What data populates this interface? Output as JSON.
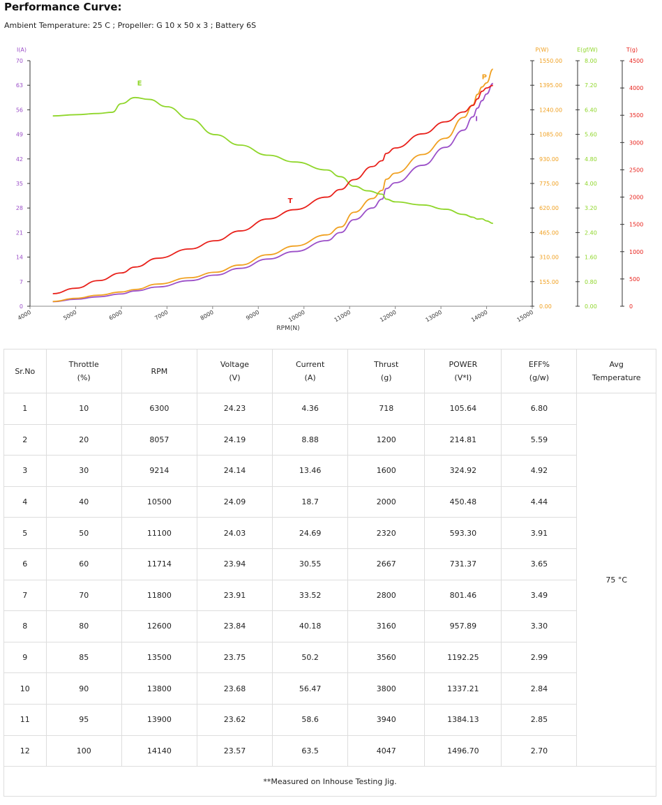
{
  "header": {
    "title": "Performance Curve:",
    "subtitle": "Ambient Temperature: 25 C ; Propeller: G 10 x 50 x 3 ; Battery 6S"
  },
  "chart_data": {
    "type": "line",
    "xlabel": "RPM(N)",
    "x_ticks": [
      "4000",
      "5000",
      "6000",
      "7000",
      "8000",
      "9000",
      "10000",
      "11000",
      "12000",
      "13000",
      "14000",
      "15000"
    ],
    "xlim": [
      4000,
      15000
    ],
    "colors": {
      "I": "#9b4fc8",
      "P": "#f0a020",
      "E": "#8fd62a",
      "T": "#e8201a"
    },
    "axes": [
      {
        "key": "I",
        "label": "I(A)",
        "ticks": [
          "70",
          "63",
          "56",
          "49",
          "42",
          "35",
          "28",
          "21",
          "14",
          "7",
          "0"
        ],
        "color": "#9b4fc8"
      },
      {
        "key": "P",
        "label": "P(W)",
        "ticks": [
          "1550.00",
          "1395.00",
          "1240.00",
          "1085.00",
          "930.00",
          "775.00",
          "620.00",
          "465.00",
          "310.00",
          "155.00",
          "0.00"
        ],
        "color": "#f0a020"
      },
      {
        "key": "E",
        "label": "E(gf/W)",
        "ticks": [
          "8.00",
          "7.20",
          "6.40",
          "5.60",
          "4.80",
          "4.00",
          "3.20",
          "2.40",
          "1.60",
          "0.80",
          "0.00"
        ],
        "color": "#8fd62a"
      },
      {
        "key": "T",
        "label": "T(g)",
        "ticks": [
          "4500",
          "4000",
          "3500",
          "3000",
          "2500",
          "2000",
          "1500",
          "1000",
          "500",
          "0"
        ],
        "color": "#e8201a"
      }
    ],
    "series": [
      {
        "name": "I",
        "axis": "I",
        "ylim": [
          0,
          70
        ],
        "x": [
          4500,
          5000,
          5500,
          6000,
          6300,
          6800,
          7500,
          8057,
          8600,
          9214,
          9800,
          10500,
          10800,
          11100,
          11500,
          11714,
          11800,
          12000,
          12600,
          13100,
          13500,
          13700,
          13800,
          13900,
          14000,
          14140
        ],
        "y": [
          1.3,
          2,
          2.7,
          3.5,
          4.36,
          5.5,
          7.3,
          8.88,
          10.8,
          13.46,
          15.6,
          18.7,
          21,
          24.69,
          28,
          30.55,
          33.52,
          35.2,
          40.18,
          45.3,
          50.2,
          54,
          56.47,
          58.6,
          60.5,
          63.5
        ]
      },
      {
        "name": "P",
        "axis": "P",
        "ylim": [
          0,
          1550
        ],
        "x": [
          4500,
          5000,
          5500,
          6000,
          6300,
          6800,
          7500,
          8057,
          8600,
          9214,
          9800,
          10500,
          10800,
          11100,
          11500,
          11714,
          11800,
          12000,
          12600,
          13100,
          13500,
          13700,
          13800,
          13900,
          14000,
          14140
        ],
        "y": [
          30,
          50,
          70,
          90,
          105.64,
          140,
          180,
          214.81,
          260,
          324.92,
          380,
          450.48,
          500,
          593.3,
          680,
          731.37,
          801.46,
          840,
          957.89,
          1060,
          1192.25,
          1270,
          1337.21,
          1384.13,
          1410,
          1496.7
        ]
      },
      {
        "name": "E",
        "axis": "E",
        "ylim": [
          0,
          8
        ],
        "x": [
          4500,
          5000,
          5500,
          5800,
          6000,
          6300,
          6600,
          7000,
          7500,
          8057,
          8600,
          9214,
          9800,
          10500,
          10800,
          11100,
          11400,
          11714,
          11800,
          12000,
          12600,
          13100,
          13500,
          13700,
          13800,
          13900,
          14000,
          14140
        ],
        "y": [
          6.2,
          6.24,
          6.28,
          6.32,
          6.6,
          6.8,
          6.74,
          6.5,
          6.1,
          5.59,
          5.25,
          4.92,
          4.7,
          4.44,
          4.22,
          3.91,
          3.76,
          3.65,
          3.49,
          3.4,
          3.3,
          3.16,
          2.99,
          2.9,
          2.84,
          2.85,
          2.78,
          2.7
        ]
      },
      {
        "name": "T",
        "axis": "T",
        "ylim": [
          0,
          4500
        ],
        "x": [
          4500,
          5000,
          5500,
          6000,
          6300,
          6800,
          7500,
          8057,
          8600,
          9214,
          9800,
          10500,
          10800,
          11100,
          11500,
          11714,
          11800,
          12000,
          12600,
          13100,
          13500,
          13700,
          13800,
          13900,
          14000,
          14140
        ],
        "y": [
          230,
          330,
          470,
          610,
          718,
          880,
          1050,
          1200,
          1380,
          1600,
          1770,
          2000,
          2140,
          2320,
          2560,
          2667,
          2800,
          2900,
          3160,
          3380,
          3560,
          3680,
          3800,
          3940,
          4000,
          4047
        ]
      }
    ]
  },
  "table": {
    "headers": [
      {
        "lines": [
          "Sr.No"
        ]
      },
      {
        "lines": [
          "Throttle",
          "(%)"
        ]
      },
      {
        "lines": [
          "RPM"
        ]
      },
      {
        "lines": [
          "Voltage",
          "(V)"
        ]
      },
      {
        "lines": [
          "Current",
          "(A)"
        ]
      },
      {
        "lines": [
          "Thrust",
          "(g)"
        ]
      },
      {
        "lines": [
          "POWER",
          "(V*I)"
        ]
      },
      {
        "lines": [
          "EFF%",
          "(g/w)"
        ]
      },
      {
        "lines": [
          "Avg",
          "Temperature"
        ]
      }
    ],
    "rows": [
      [
        "1",
        "10",
        "6300",
        "24.23",
        "4.36",
        "718",
        "105.64",
        "6.80"
      ],
      [
        "2",
        "20",
        "8057",
        "24.19",
        "8.88",
        "1200",
        "214.81",
        "5.59"
      ],
      [
        "3",
        "30",
        "9214",
        "24.14",
        "13.46",
        "1600",
        "324.92",
        "4.92"
      ],
      [
        "4",
        "40",
        "10500",
        "24.09",
        "18.7",
        "2000",
        "450.48",
        "4.44"
      ],
      [
        "5",
        "50",
        "11100",
        "24.03",
        "24.69",
        "2320",
        "593.30",
        "3.91"
      ],
      [
        "6",
        "60",
        "11714",
        "23.94",
        "30.55",
        "2667",
        "731.37",
        "3.65"
      ],
      [
        "7",
        "70",
        "11800",
        "23.91",
        "33.52",
        "2800",
        "801.46",
        "3.49"
      ],
      [
        "8",
        "80",
        "12600",
        "23.84",
        "40.18",
        "3160",
        "957.89",
        "3.30"
      ],
      [
        "9",
        "85",
        "13500",
        "23.75",
        "50.2",
        "3560",
        "1192.25",
        "2.99"
      ],
      [
        "10",
        "90",
        "13800",
        "23.68",
        "56.47",
        "3800",
        "1337.21",
        "2.84"
      ],
      [
        "11",
        "95",
        "13900",
        "23.62",
        "58.6",
        "3940",
        "1384.13",
        "2.85"
      ],
      [
        "12",
        "100",
        "14140",
        "23.57",
        "63.5",
        "4047",
        "1496.70",
        "2.70"
      ]
    ],
    "avg_temperature": "75 °C",
    "footer": "**Measured on Inhouse Testing Jig."
  }
}
